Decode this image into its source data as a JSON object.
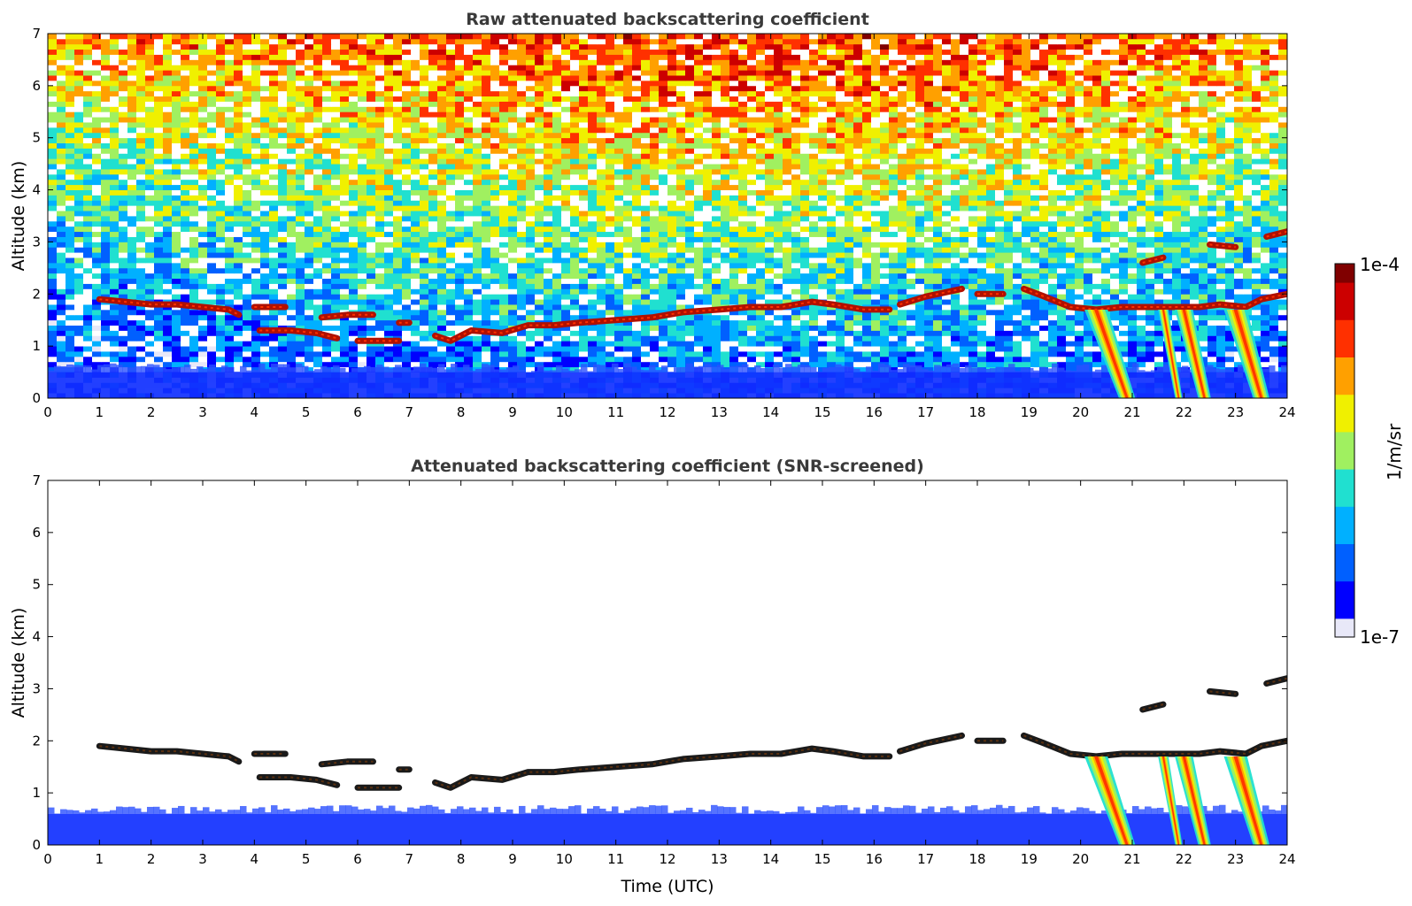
{
  "chart_data": [
    {
      "type": "heatmap",
      "title": "Raw attenuated backscattering coefficient",
      "xlabel": "",
      "ylabel": "Altitude (km)",
      "xlim": [
        0,
        24
      ],
      "ylim": [
        0,
        7
      ],
      "x_ticks": [
        "0",
        "1",
        "2",
        "3",
        "4",
        "5",
        "6",
        "7",
        "8",
        "9",
        "10",
        "11",
        "12",
        "13",
        "14",
        "15",
        "16",
        "17",
        "18",
        "19",
        "20",
        "21",
        "22",
        "23",
        "24"
      ],
      "y_ticks": [
        "0",
        "1",
        "2",
        "3",
        "4",
        "5",
        "6",
        "7"
      ],
      "color_scale": "log",
      "noise_background": true,
      "layers": [
        {
          "kind": "boundary_layer",
          "top_km": 0.5
        },
        {
          "kind": "cloud_layer",
          "points": [
            [
              1.0,
              1.9
            ],
            [
              1.5,
              1.85
            ],
            [
              2.0,
              1.8
            ],
            [
              2.5,
              1.8
            ],
            [
              3.0,
              1.75
            ],
            [
              3.5,
              1.7
            ],
            [
              3.7,
              1.6
            ]
          ]
        },
        {
          "kind": "cloud_layer",
          "points": [
            [
              4.0,
              1.75
            ],
            [
              4.6,
              1.75
            ]
          ]
        },
        {
          "kind": "cloud_layer",
          "points": [
            [
              4.1,
              1.3
            ],
            [
              4.7,
              1.3
            ],
            [
              5.2,
              1.25
            ],
            [
              5.6,
              1.15
            ]
          ]
        },
        {
          "kind": "cloud_layer",
          "points": [
            [
              5.3,
              1.55
            ],
            [
              5.8,
              1.6
            ],
            [
              6.3,
              1.6
            ]
          ]
        },
        {
          "kind": "cloud_layer",
          "points": [
            [
              6.0,
              1.1
            ],
            [
              6.8,
              1.1
            ]
          ]
        },
        {
          "kind": "cloud_layer",
          "points": [
            [
              6.8,
              1.45
            ],
            [
              7.0,
              1.45
            ]
          ]
        },
        {
          "kind": "cloud_layer",
          "points": [
            [
              7.5,
              1.2
            ],
            [
              7.8,
              1.1
            ],
            [
              8.2,
              1.3
            ],
            [
              8.8,
              1.25
            ],
            [
              9.3,
              1.4
            ],
            [
              9.8,
              1.4
            ],
            [
              10.3,
              1.45
            ],
            [
              11.0,
              1.5
            ],
            [
              11.7,
              1.55
            ],
            [
              12.3,
              1.65
            ],
            [
              13.0,
              1.7
            ],
            [
              13.6,
              1.75
            ],
            [
              14.2,
              1.75
            ],
            [
              14.8,
              1.85
            ],
            [
              15.2,
              1.8
            ],
            [
              15.8,
              1.7
            ],
            [
              16.3,
              1.7
            ]
          ]
        },
        {
          "kind": "cloud_layer",
          "points": [
            [
              16.5,
              1.8
            ],
            [
              17.0,
              1.95
            ],
            [
              17.7,
              2.1
            ]
          ]
        },
        {
          "kind": "cloud_layer",
          "points": [
            [
              18.0,
              2.0
            ],
            [
              18.5,
              2.0
            ]
          ]
        },
        {
          "kind": "cloud_layer",
          "points": [
            [
              18.9,
              2.1
            ],
            [
              19.3,
              1.95
            ],
            [
              19.8,
              1.75
            ],
            [
              20.3,
              1.7
            ],
            [
              20.8,
              1.75
            ],
            [
              21.3,
              1.75
            ],
            [
              21.8,
              1.75
            ],
            [
              22.3,
              1.75
            ],
            [
              22.7,
              1.8
            ],
            [
              23.2,
              1.75
            ],
            [
              23.5,
              1.9
            ],
            [
              24.0,
              2.0
            ]
          ]
        },
        {
          "kind": "cloud_layer",
          "points": [
            [
              21.2,
              2.6
            ],
            [
              21.6,
              2.7
            ]
          ]
        },
        {
          "kind": "cloud_layer",
          "points": [
            [
              22.5,
              2.95
            ],
            [
              23.0,
              2.9
            ]
          ]
        },
        {
          "kind": "cloud_layer",
          "points": [
            [
              23.6,
              3.1
            ],
            [
              24.0,
              3.2
            ]
          ]
        },
        {
          "kind": "precipitation",
          "top": [
            20.3,
            1.7
          ],
          "bottom": [
            20.9,
            0.0
          ],
          "width_hr": 0.45
        },
        {
          "kind": "precipitation",
          "top": [
            21.6,
            1.7
          ],
          "bottom": [
            21.9,
            0.0
          ],
          "width_hr": 0.2
        },
        {
          "kind": "precipitation",
          "top": [
            22.0,
            1.7
          ],
          "bottom": [
            22.4,
            0.0
          ],
          "width_hr": 0.35
        },
        {
          "kind": "precipitation",
          "top": [
            23.0,
            1.7
          ],
          "bottom": [
            23.5,
            0.0
          ],
          "width_hr": 0.45
        }
      ]
    },
    {
      "type": "heatmap",
      "title": "Attenuated backscattering coefficient (SNR-screened)",
      "xlabel": "Time (UTC)",
      "ylabel": "Altitude (km)",
      "xlim": [
        0,
        24
      ],
      "ylim": [
        0,
        7
      ],
      "x_ticks": [
        "0",
        "1",
        "2",
        "3",
        "4",
        "5",
        "6",
        "7",
        "8",
        "9",
        "10",
        "11",
        "12",
        "13",
        "14",
        "15",
        "16",
        "17",
        "18",
        "19",
        "20",
        "21",
        "22",
        "23",
        "24"
      ],
      "y_ticks": [
        "0",
        "1",
        "2",
        "3",
        "4",
        "5",
        "6",
        "7"
      ],
      "color_scale": "log",
      "noise_background": false,
      "layers": [
        {
          "kind": "boundary_layer",
          "top_km": 0.6
        },
        {
          "kind": "cloud_layer",
          "points": [
            [
              1.0,
              1.9
            ],
            [
              1.5,
              1.85
            ],
            [
              2.0,
              1.8
            ],
            [
              2.5,
              1.8
            ],
            [
              3.0,
              1.75
            ],
            [
              3.5,
              1.7
            ],
            [
              3.7,
              1.6
            ]
          ]
        },
        {
          "kind": "cloud_layer",
          "points": [
            [
              4.0,
              1.75
            ],
            [
              4.6,
              1.75
            ]
          ]
        },
        {
          "kind": "cloud_layer",
          "points": [
            [
              4.1,
              1.3
            ],
            [
              4.7,
              1.3
            ],
            [
              5.2,
              1.25
            ],
            [
              5.6,
              1.15
            ]
          ]
        },
        {
          "kind": "cloud_layer",
          "points": [
            [
              5.3,
              1.55
            ],
            [
              5.8,
              1.6
            ],
            [
              6.3,
              1.6
            ]
          ]
        },
        {
          "kind": "cloud_layer",
          "points": [
            [
              6.0,
              1.1
            ],
            [
              6.8,
              1.1
            ]
          ]
        },
        {
          "kind": "cloud_layer",
          "points": [
            [
              6.8,
              1.45
            ],
            [
              7.0,
              1.45
            ]
          ]
        },
        {
          "kind": "cloud_layer",
          "points": [
            [
              7.5,
              1.2
            ],
            [
              7.8,
              1.1
            ],
            [
              8.2,
              1.3
            ],
            [
              8.8,
              1.25
            ],
            [
              9.3,
              1.4
            ],
            [
              9.8,
              1.4
            ],
            [
              10.3,
              1.45
            ],
            [
              11.0,
              1.5
            ],
            [
              11.7,
              1.55
            ],
            [
              12.3,
              1.65
            ],
            [
              13.0,
              1.7
            ],
            [
              13.6,
              1.75
            ],
            [
              14.2,
              1.75
            ],
            [
              14.8,
              1.85
            ],
            [
              15.2,
              1.8
            ],
            [
              15.8,
              1.7
            ],
            [
              16.3,
              1.7
            ]
          ]
        },
        {
          "kind": "cloud_layer",
          "points": [
            [
              16.5,
              1.8
            ],
            [
              17.0,
              1.95
            ],
            [
              17.7,
              2.1
            ]
          ]
        },
        {
          "kind": "cloud_layer",
          "points": [
            [
              18.0,
              2.0
            ],
            [
              18.5,
              2.0
            ]
          ]
        },
        {
          "kind": "cloud_layer",
          "points": [
            [
              18.9,
              2.1
            ],
            [
              19.3,
              1.95
            ],
            [
              19.8,
              1.75
            ],
            [
              20.3,
              1.7
            ],
            [
              20.8,
              1.75
            ],
            [
              21.3,
              1.75
            ],
            [
              21.8,
              1.75
            ],
            [
              22.3,
              1.75
            ],
            [
              22.7,
              1.8
            ],
            [
              23.2,
              1.75
            ],
            [
              23.5,
              1.9
            ],
            [
              24.0,
              2.0
            ]
          ]
        },
        {
          "kind": "cloud_layer",
          "points": [
            [
              21.2,
              2.6
            ],
            [
              21.6,
              2.7
            ]
          ]
        },
        {
          "kind": "cloud_layer",
          "points": [
            [
              22.5,
              2.95
            ],
            [
              23.0,
              2.9
            ]
          ]
        },
        {
          "kind": "cloud_layer",
          "points": [
            [
              23.6,
              3.1
            ],
            [
              24.0,
              3.2
            ]
          ]
        },
        {
          "kind": "precipitation",
          "top": [
            20.3,
            1.7
          ],
          "bottom": [
            20.9,
            0.0
          ],
          "width_hr": 0.45
        },
        {
          "kind": "precipitation",
          "top": [
            21.6,
            1.7
          ],
          "bottom": [
            21.9,
            0.0
          ],
          "width_hr": 0.2
        },
        {
          "kind": "precipitation",
          "top": [
            22.0,
            1.7
          ],
          "bottom": [
            22.4,
            0.0
          ],
          "width_hr": 0.35
        },
        {
          "kind": "precipitation",
          "top": [
            23.0,
            1.7
          ],
          "bottom": [
            23.5,
            0.0
          ],
          "width_hr": 0.45
        }
      ]
    }
  ],
  "colorbar": {
    "label": "1/m/sr",
    "max_label": "1e-4",
    "min_label": "1e-7",
    "colormap": [
      "#e8e8f8",
      "#0000ff",
      "#0060ff",
      "#00b0ff",
      "#20e0d0",
      "#a0f060",
      "#f0f000",
      "#ffa000",
      "#ff3000",
      "#cc0000",
      "#800000"
    ]
  },
  "colors": {
    "cloud_raw": "#b01000",
    "cloud_screened": "#1a1a1a",
    "boundary_layer": "#1030ff",
    "axes": "#000000"
  }
}
